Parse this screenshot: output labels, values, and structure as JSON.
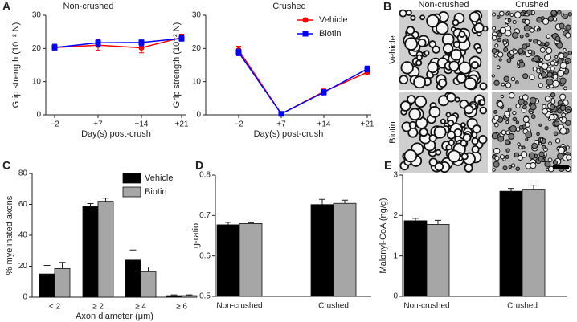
{
  "panel_labels": [
    "A",
    "B",
    "C",
    "D",
    "E"
  ],
  "panel_b": {
    "columns": [
      "Non-crushed",
      "Crushed"
    ],
    "rows": [
      "Vehicle",
      "Biotin"
    ]
  },
  "chart_data": [
    {
      "type": "line",
      "title": "Non-crushed",
      "y_label": "Grip strength (10⁻² N)",
      "x_label": "Day(s) post-crush",
      "categories": [
        "−2",
        "+7",
        "+14",
        "+21"
      ],
      "ylim": [
        0,
        30
      ],
      "yticks": [
        0,
        10,
        20,
        30
      ],
      "series": [
        {
          "name": "Vehicle",
          "color": "#ff0000",
          "marker": "circle",
          "values": [
            20.3,
            21,
            20.2,
            23.3
          ],
          "errors": [
            1,
            1.5,
            1.5,
            1
          ]
        },
        {
          "name": "Biotin",
          "color": "#0000ff",
          "marker": "square",
          "values": [
            20.3,
            21.7,
            21.8,
            23
          ],
          "errors": [
            1,
            1,
            1,
            0.8
          ]
        }
      ]
    },
    {
      "type": "line",
      "title": "Crushed",
      "y_label": "Grip strength (10⁻² N)",
      "x_label": "Day(s) post-crush",
      "categories": [
        "−2",
        "+7",
        "+14",
        "+21"
      ],
      "ylim": [
        0,
        30
      ],
      "yticks": [
        0,
        10,
        20,
        30
      ],
      "legend": "upper right",
      "series": [
        {
          "name": "Vehicle",
          "color": "#ff0000",
          "marker": "circle",
          "values": [
            19.5,
            0.3,
            7,
            12.8
          ],
          "errors": [
            1.2,
            0.3,
            0.8,
            0.8
          ]
        },
        {
          "name": "Biotin",
          "color": "#0000ff",
          "marker": "square",
          "values": [
            18.8,
            0.3,
            6.8,
            13.8
          ],
          "errors": [
            1,
            0.3,
            0.8,
            0.9
          ]
        }
      ]
    },
    {
      "type": "bar",
      "y_label": "% myelinated axons",
      "x_label": "Axon diameter (μm)",
      "categories": [
        "< 2",
        "≥ 2",
        "≥ 4",
        "≥ 6"
      ],
      "ylim": [
        0,
        80
      ],
      "yticks": [
        0,
        20,
        40,
        60,
        80
      ],
      "legend": "upper right",
      "series": [
        {
          "name": "Vehicle",
          "color": "#000000",
          "values": [
            15,
            58.5,
            24,
            1
          ],
          "errors": [
            5.5,
            2,
            6.5,
            0.5
          ]
        },
        {
          "name": "Biotin",
          "color": "#a6a6a6",
          "values": [
            18.5,
            62,
            16.5,
            1
          ],
          "errors": [
            4,
            2,
            3,
            0.5
          ]
        }
      ]
    },
    {
      "type": "bar",
      "y_label": "g-ratio",
      "categories": [
        "Non-crushed",
        "Crushed"
      ],
      "ylim": [
        0.5,
        0.8
      ],
      "yticks": [
        0.5,
        0.6,
        0.7,
        0.8
      ],
      "series": [
        {
          "name": "Vehicle",
          "color": "#000000",
          "values": [
            0.677,
            0.727
          ],
          "errors": [
            0.006,
            0.013
          ]
        },
        {
          "name": "Biotin",
          "color": "#a6a6a6",
          "values": [
            0.68,
            0.73
          ],
          "errors": [
            0.002,
            0.008
          ]
        }
      ]
    },
    {
      "type": "bar",
      "y_label": "Malonyl-CoA (ng/g)",
      "categories": [
        "Non-crushed",
        "Crushed"
      ],
      "ylim": [
        0,
        3
      ],
      "yticks": [
        0,
        1,
        2,
        3
      ],
      "series": [
        {
          "name": "Vehicle",
          "color": "#000000",
          "values": [
            1.87,
            2.6
          ],
          "errors": [
            0.06,
            0.07
          ]
        },
        {
          "name": "Biotin",
          "color": "#a6a6a6",
          "values": [
            1.78,
            2.65
          ],
          "errors": [
            0.1,
            0.1
          ]
        }
      ]
    }
  ]
}
